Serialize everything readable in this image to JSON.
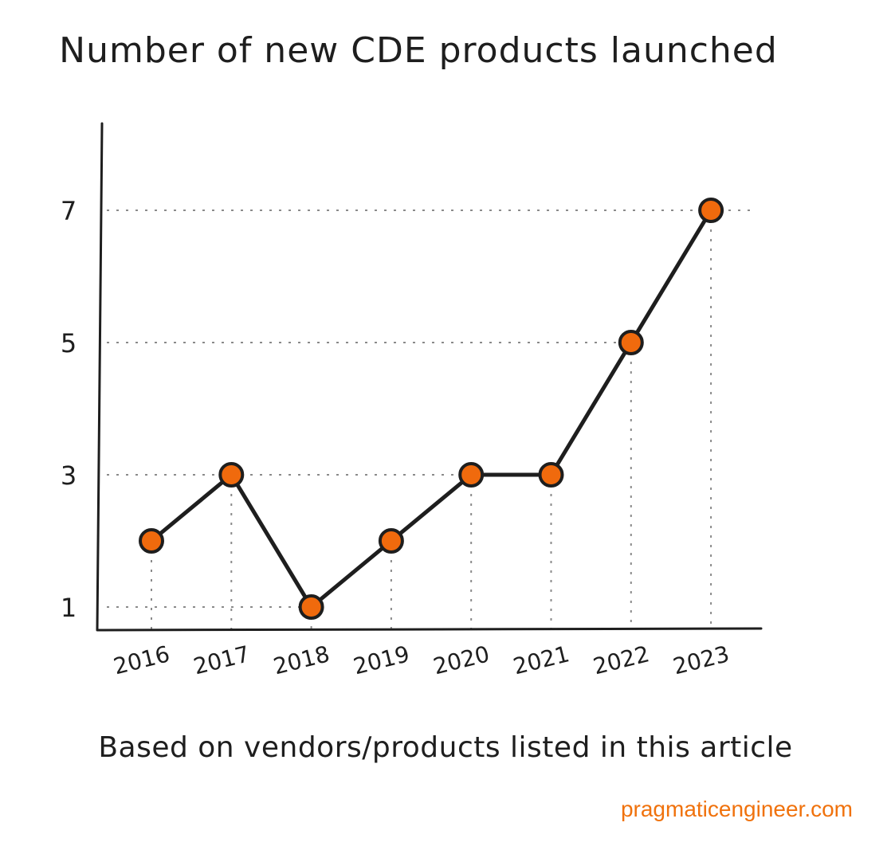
{
  "chart_data": {
    "type": "line",
    "title": "Number of new CDE products launched",
    "categories": [
      "2016",
      "2017",
      "2018",
      "2019",
      "2020",
      "2021",
      "2022",
      "2023"
    ],
    "values": [
      2,
      3,
      1,
      2,
      3,
      3,
      5,
      7
    ],
    "y_ticks": [
      "1",
      "3",
      "5",
      "7"
    ],
    "ylim": [
      0,
      7
    ],
    "grid": "dotted guide lines at points",
    "legend": "none"
  },
  "caption": "Based on vendors/products listed in this article",
  "source": "pragmaticengineer.com",
  "colors": {
    "line": "#1e1e1e",
    "marker": "#f06a0d",
    "source": "#f0720d",
    "grid": "#8a8a8a"
  }
}
